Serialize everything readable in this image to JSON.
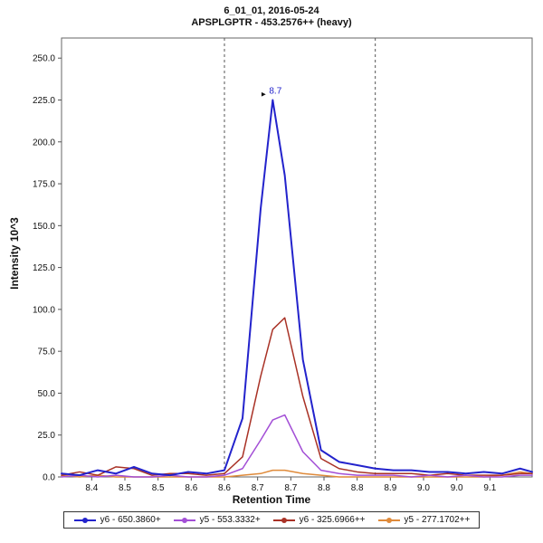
{
  "header": {
    "title_line1": "6_01_01, 2016-05-24",
    "title_line2": "APSPLGPTR - 453.2576++ (heavy)"
  },
  "chart_data": {
    "type": "line",
    "title": "6_01_01, 2016-05-24",
    "subtitle": "APSPLGPTR - 453.2576++ (heavy)",
    "xlabel": "Retention Time",
    "ylabel": "Intensity 10^3",
    "xlim": [
      8.35,
      9.13
    ],
    "ylim": [
      0,
      262
    ],
    "grid": false,
    "legend_position": "bottom",
    "x": [
      8.35,
      8.38,
      8.41,
      8.44,
      8.47,
      8.5,
      8.53,
      8.56,
      8.59,
      8.62,
      8.65,
      8.68,
      8.7,
      8.72,
      8.75,
      8.78,
      8.81,
      8.84,
      8.87,
      8.9,
      8.93,
      8.96,
      8.99,
      9.02,
      9.05,
      9.08,
      9.11,
      9.13
    ],
    "series": [
      {
        "name": "y6 - 650.3860+",
        "color": "#2323cc",
        "width": 2,
        "values": [
          2,
          1,
          4,
          2,
          6,
          2,
          1,
          3,
          2,
          4,
          35,
          160,
          225,
          180,
          70,
          16,
          9,
          7,
          5,
          4,
          4,
          3,
          3,
          2,
          3,
          2,
          5,
          3
        ]
      },
      {
        "name": "y5 - 553.3332+",
        "color": "#a34fd6",
        "width": 1.5,
        "values": [
          0,
          1,
          0,
          1,
          0,
          0,
          1,
          0,
          0,
          1,
          5,
          22,
          34,
          37,
          15,
          4,
          2,
          1,
          1,
          1,
          0,
          1,
          0,
          1,
          0,
          0,
          1,
          1
        ]
      },
      {
        "name": "y6 - 325.6966++",
        "color": "#a93226",
        "width": 1.5,
        "values": [
          1,
          3,
          1,
          6,
          5,
          1,
          2,
          2,
          1,
          2,
          12,
          60,
          88,
          95,
          48,
          11,
          5,
          3,
          2,
          2,
          2,
          1,
          2,
          1,
          1,
          1,
          2,
          2
        ]
      },
      {
        "name": "y5 - 277.1702++",
        "color": "#df8a3a",
        "width": 1.5,
        "values": [
          1,
          0,
          1,
          0,
          0,
          0,
          0,
          0,
          0,
          0,
          1,
          2,
          4,
          4,
          2,
          1,
          0,
          0,
          0,
          0,
          0,
          0,
          0,
          0,
          0,
          1,
          3,
          2
        ]
      }
    ],
    "yticks": [
      {
        "v": 0,
        "label": "0.0"
      },
      {
        "v": 25,
        "label": "25.0"
      },
      {
        "v": 50,
        "label": "50.0"
      },
      {
        "v": 75,
        "label": "75.0"
      },
      {
        "v": 100,
        "label": "100.0"
      },
      {
        "v": 125,
        "label": "125.0"
      },
      {
        "v": 150,
        "label": "150.0"
      },
      {
        "v": 175,
        "label": "175.0"
      },
      {
        "v": 200,
        "label": "200.0"
      },
      {
        "v": 225,
        "label": "225.0"
      },
      {
        "v": 250,
        "label": "250.0"
      }
    ],
    "xticks": [
      {
        "v": 8.4,
        "label": "8.4"
      },
      {
        "v": 8.455,
        "label": "8.5"
      },
      {
        "v": 8.51,
        "label": "8.5"
      },
      {
        "v": 8.565,
        "label": "8.6"
      },
      {
        "v": 8.62,
        "label": "8.6"
      },
      {
        "v": 8.675,
        "label": "8.7"
      },
      {
        "v": 8.73,
        "label": "8.7"
      },
      {
        "v": 8.785,
        "label": "8.8"
      },
      {
        "v": 8.84,
        "label": "8.8"
      },
      {
        "v": 8.895,
        "label": "8.9"
      },
      {
        "v": 8.95,
        "label": "9.0"
      },
      {
        "v": 9.005,
        "label": "9.0"
      },
      {
        "v": 9.06,
        "label": "9.1"
      }
    ],
    "boundaries": [
      8.62,
      8.87
    ],
    "annotation": {
      "x": 8.7,
      "y": 225,
      "label": "8.7"
    }
  }
}
